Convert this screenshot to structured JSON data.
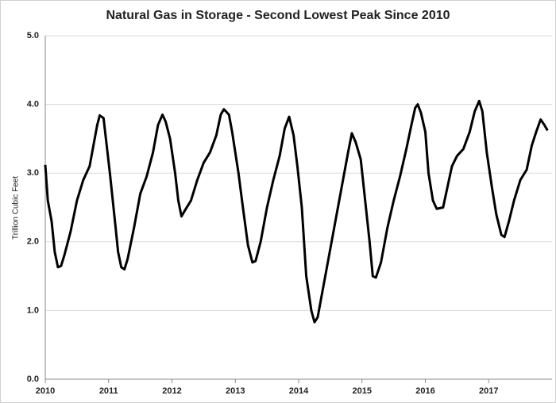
{
  "chart_data": {
    "type": "line",
    "title": "Natural Gas in Storage - Second Lowest Peak Since 2010",
    "y_label": "Trillion Cubic Feet",
    "color": "#000000",
    "grid": true,
    "xlim": [
      2010,
      2018
    ],
    "xticks": [
      2010,
      2011,
      2012,
      2013,
      2014,
      2015,
      2016,
      2017
    ],
    "ylim": [
      0,
      5
    ],
    "yticks": [
      {
        "value": 0,
        "label": "0.0"
      },
      {
        "value": 1,
        "label": "1.0"
      },
      {
        "value": 2,
        "label": "2.0"
      },
      {
        "value": 3,
        "label": "3.0"
      },
      {
        "value": 4,
        "label": "4.0"
      },
      {
        "value": 5,
        "label": "5.0"
      }
    ],
    "x": [
      2010.0,
      2010.04,
      2010.1,
      2010.15,
      2010.2,
      2010.25,
      2010.3,
      2010.4,
      2010.5,
      2010.6,
      2010.7,
      2010.75,
      2010.82,
      2010.86,
      2010.92,
      2010.97,
      2011.02,
      2011.1,
      2011.15,
      2011.2,
      2011.25,
      2011.3,
      2011.4,
      2011.5,
      2011.6,
      2011.7,
      2011.78,
      2011.85,
      2011.9,
      2011.97,
      2012.05,
      2012.1,
      2012.15,
      2012.2,
      2012.3,
      2012.4,
      2012.5,
      2012.6,
      2012.7,
      2012.77,
      2012.82,
      2012.9,
      2012.95,
      2013.05,
      2013.12,
      2013.2,
      2013.27,
      2013.32,
      2013.4,
      2013.5,
      2013.6,
      2013.7,
      2013.78,
      2013.85,
      2013.92,
      2013.98,
      2014.05,
      2014.12,
      2014.2,
      2014.25,
      2014.3,
      2014.4,
      2014.5,
      2014.6,
      2014.7,
      2014.78,
      2014.84,
      2014.9,
      2014.98,
      2015.05,
      2015.12,
      2015.17,
      2015.22,
      2015.3,
      2015.4,
      2015.5,
      2015.6,
      2015.7,
      2015.78,
      2015.84,
      2015.88,
      2015.93,
      2016.0,
      2016.05,
      2016.12,
      2016.18,
      2016.28,
      2016.35,
      2016.42,
      2016.5,
      2016.6,
      2016.7,
      2016.78,
      2016.85,
      2016.9,
      2016.97,
      2017.05,
      2017.12,
      2017.2,
      2017.25,
      2017.32,
      2017.4,
      2017.5,
      2017.6,
      2017.68,
      2017.75,
      2017.82,
      2017.88,
      2017.93
    ],
    "values": [
      3.12,
      2.6,
      2.3,
      1.85,
      1.63,
      1.65,
      1.8,
      2.15,
      2.6,
      2.9,
      3.1,
      3.35,
      3.7,
      3.84,
      3.8,
      3.4,
      3.0,
      2.3,
      1.85,
      1.63,
      1.6,
      1.75,
      2.2,
      2.7,
      2.95,
      3.3,
      3.7,
      3.85,
      3.75,
      3.5,
      3.0,
      2.6,
      2.37,
      2.45,
      2.6,
      2.9,
      3.15,
      3.3,
      3.55,
      3.85,
      3.93,
      3.85,
      3.6,
      3.0,
      2.5,
      1.95,
      1.7,
      1.72,
      2.0,
      2.5,
      2.9,
      3.25,
      3.65,
      3.82,
      3.55,
      3.1,
      2.5,
      1.5,
      1.0,
      0.83,
      0.9,
      1.4,
      1.9,
      2.4,
      2.9,
      3.3,
      3.58,
      3.45,
      3.2,
      2.6,
      2.0,
      1.5,
      1.48,
      1.7,
      2.2,
      2.6,
      2.95,
      3.35,
      3.7,
      3.95,
      4.0,
      3.88,
      3.6,
      3.0,
      2.6,
      2.48,
      2.5,
      2.8,
      3.1,
      3.25,
      3.35,
      3.6,
      3.9,
      4.05,
      3.9,
      3.3,
      2.8,
      2.4,
      2.1,
      2.07,
      2.3,
      2.6,
      2.9,
      3.05,
      3.4,
      3.6,
      3.78,
      3.7,
      3.62
    ]
  }
}
